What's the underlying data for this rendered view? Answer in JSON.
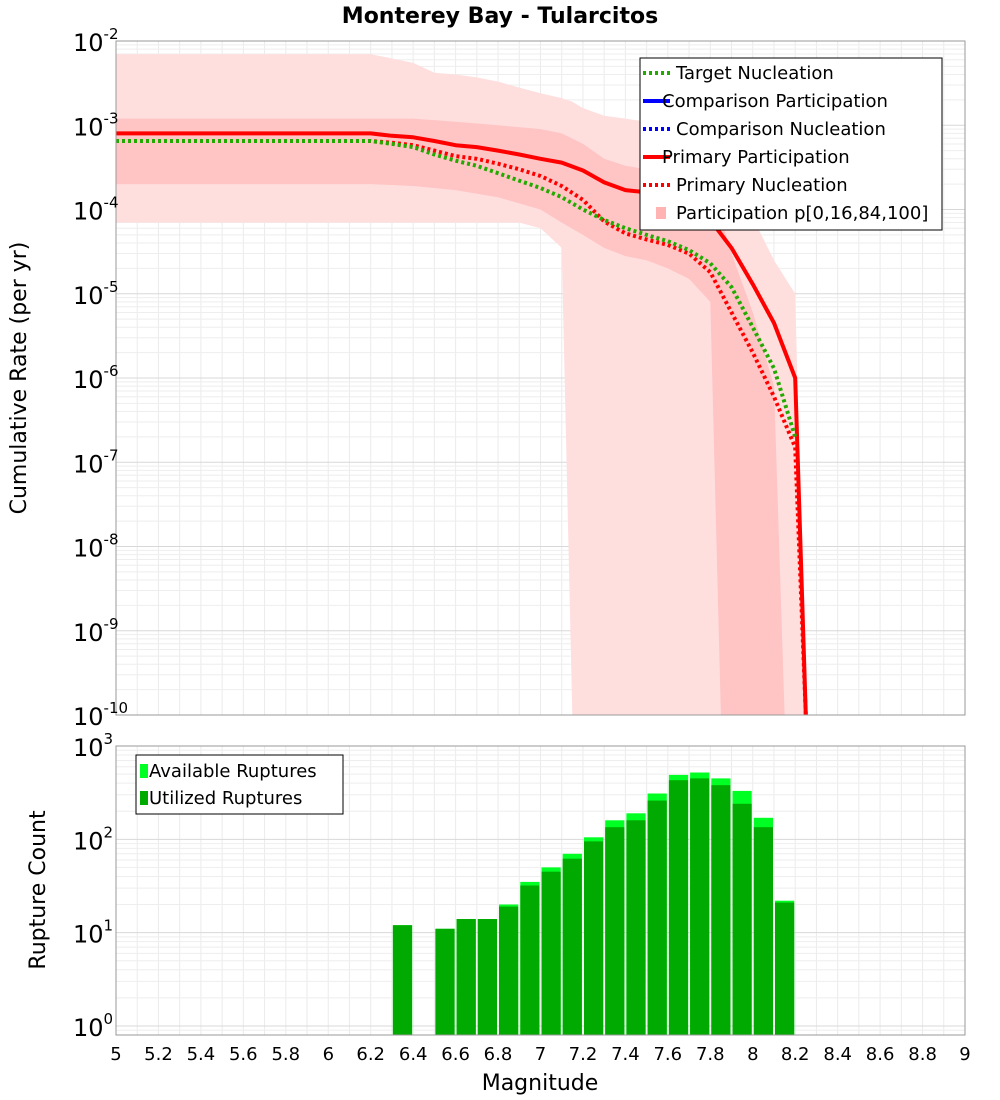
{
  "chart_data": [
    {
      "type": "line",
      "title": "Monterey Bay - Tularcitos",
      "xlabel": "",
      "ylabel": "Cumulative Rate (per yr)",
      "xlim": [
        5,
        9
      ],
      "ylim": [
        1e-10,
        0.01
      ],
      "yscale": "log",
      "grid": true,
      "legend_position": "top-right",
      "yticks": [
        {
          "base": "10",
          "exp": "-2"
        },
        {
          "base": "10",
          "exp": "-3"
        },
        {
          "base": "10",
          "exp": "-4"
        },
        {
          "base": "10",
          "exp": "-5"
        },
        {
          "base": "10",
          "exp": "-6"
        },
        {
          "base": "10",
          "exp": "-7"
        },
        {
          "base": "10",
          "exp": "-8"
        },
        {
          "base": "10",
          "exp": "-9"
        },
        {
          "base": "10",
          "exp": "-10"
        }
      ],
      "legend": [
        {
          "label": "Target Nucleation",
          "color": "#22aa00",
          "style": "dotted"
        },
        {
          "label": "Comparison Participation",
          "color": "#0000ff",
          "style": "solid"
        },
        {
          "label": "Comparison Nucleation",
          "color": "#0000ff",
          "style": "dotted"
        },
        {
          "label": "Primary Participation",
          "color": "#ff0000",
          "style": "solid"
        },
        {
          "label": "Primary Nucleation",
          "color": "#ff0000",
          "style": "dotted"
        },
        {
          "label": "Participation p[0,16,84,100]",
          "color": "#ffb3b3",
          "style": "band"
        }
      ],
      "series": [
        {
          "name": "Primary Participation",
          "color": "#ff0000",
          "style": "solid",
          "x": [
            5.0,
            6.2,
            6.3,
            6.4,
            6.5,
            6.6,
            6.7,
            6.8,
            6.9,
            7.0,
            7.1,
            7.2,
            7.3,
            7.4,
            7.5,
            7.6,
            7.7,
            7.8,
            7.9,
            8.0,
            8.1,
            8.2,
            8.25
          ],
          "y": [
            0.0008,
            0.0008,
            0.00075,
            0.00072,
            0.00065,
            0.00058,
            0.00055,
            0.0005,
            0.00045,
            0.0004,
            0.00036,
            0.00029,
            0.00021,
            0.00017,
            0.00016,
            0.00014,
            0.00011,
            7.5e-05,
            3.5e-05,
            1.3e-05,
            4.5e-06,
            1e-06,
            1e-10
          ]
        },
        {
          "name": "Primary Nucleation",
          "color": "#ff0000",
          "style": "dotted",
          "x": [
            5.0,
            6.2,
            6.3,
            6.4,
            6.5,
            6.6,
            6.7,
            6.8,
            6.9,
            7.0,
            7.1,
            7.2,
            7.3,
            7.4,
            7.5,
            7.6,
            7.7,
            7.8,
            7.9,
            8.0,
            8.1,
            8.2,
            8.25
          ],
          "y": [
            0.00065,
            0.00065,
            0.00062,
            0.00058,
            0.0005,
            0.00043,
            0.0004,
            0.00035,
            0.0003,
            0.00025,
            0.00019,
            0.00013,
            7.2e-05,
            5.2e-05,
            4.4e-05,
            3.8e-05,
            3e-05,
            1.8e-05,
            6e-06,
            2e-06,
            6e-07,
            1.5e-07,
            1e-10
          ]
        },
        {
          "name": "Target Nucleation",
          "color": "#22aa00",
          "style": "dotted",
          "x": [
            5.0,
            6.2,
            6.3,
            6.4,
            6.5,
            6.6,
            6.7,
            6.8,
            6.9,
            7.0,
            7.1,
            7.2,
            7.3,
            7.4,
            7.5,
            7.6,
            7.7,
            7.8,
            7.9,
            8.0,
            8.1,
            8.2
          ],
          "y": [
            0.00065,
            0.00065,
            0.0006,
            0.00055,
            0.00045,
            0.00038,
            0.00033,
            0.00027,
            0.00022,
            0.00018,
            0.00014,
            0.0001,
            7.5e-05,
            6e-05,
            5e-05,
            4.2e-05,
            3.3e-05,
            2.3e-05,
            1.2e-05,
            4e-06,
            1.3e-06,
            2e-07
          ]
        }
      ],
      "bands": [
        {
          "name": "p0-p100",
          "color": "#ffdede",
          "x": [
            5.0,
            6.2,
            6.4,
            6.5,
            6.6,
            6.7,
            6.8,
            6.9,
            7.0,
            7.1,
            7.15,
            7.2,
            7.3,
            7.4,
            7.5,
            7.6,
            7.7,
            7.8,
            7.9,
            8.0,
            8.1,
            8.2,
            8.25
          ],
          "upper": [
            0.007,
            0.007,
            0.0055,
            0.0042,
            0.004,
            0.0037,
            0.0033,
            0.0028,
            0.0024,
            0.0021,
            0.0019,
            0.0016,
            0.0013,
            0.0012,
            0.0011,
            0.0009,
            0.0006,
            0.0004,
            0.0002,
            8e-05,
            2.5e-05,
            1e-05,
            1e-10
          ],
          "lower": [
            7e-05,
            7e-05,
            7e-05,
            7e-05,
            7e-05,
            7e-05,
            7e-05,
            7e-05,
            6e-05,
            3.5e-05,
            1e-10,
            1e-10,
            1e-10,
            1e-10,
            1e-10,
            1e-10,
            1e-10,
            1e-10,
            1e-10,
            1e-10,
            1e-10,
            1e-10,
            1e-10
          ]
        },
        {
          "name": "p16-p84",
          "color": "#ffc4c4",
          "x": [
            5.0,
            6.2,
            6.4,
            6.6,
            6.8,
            7.0,
            7.1,
            7.2,
            7.3,
            7.4,
            7.5,
            7.6,
            7.7,
            7.8,
            7.85,
            7.9,
            8.0,
            8.1,
            8.15
          ],
          "upper": [
            0.0012,
            0.0012,
            0.0012,
            0.0011,
            0.001,
            0.0009,
            0.0008,
            0.0006,
            0.0004,
            0.00033,
            0.0003,
            0.00025,
            0.0002,
            0.00012,
            8e-05,
            3e-05,
            6e-06,
            8e-07,
            1e-10
          ],
          "lower": [
            0.0002,
            0.0002,
            0.00019,
            0.00017,
            0.00014,
            0.0001,
            7e-05,
            5e-05,
            3.5e-05,
            2.8e-05,
            2.5e-05,
            2e-05,
            1.5e-05,
            8e-06,
            1e-10,
            1e-10,
            1e-10,
            1e-10,
            1e-10
          ]
        }
      ]
    },
    {
      "type": "bar",
      "title": "",
      "xlabel": "Magnitude",
      "ylabel": "Rupture Count",
      "xlim": [
        5,
        9
      ],
      "ylim": [
        0.8,
        1000
      ],
      "yscale": "log",
      "grid": true,
      "legend_position": "top-left",
      "xticks": [
        "5",
        "5.2",
        "5.4",
        "5.6",
        "5.8",
        "6",
        "6.2",
        "6.4",
        "6.6",
        "6.8",
        "7",
        "7.2",
        "7.4",
        "7.6",
        "7.8",
        "8",
        "8.2",
        "8.4",
        "8.6",
        "8.8",
        "9"
      ],
      "yticks": [
        {
          "base": "10",
          "exp": "3"
        },
        {
          "base": "10",
          "exp": "2"
        },
        {
          "base": "10",
          "exp": "1"
        },
        {
          "base": "10",
          "exp": "0"
        }
      ],
      "legend": [
        {
          "label": "Available Ruptures",
          "color": "#00ff22"
        },
        {
          "label": "Utilized Ruptures",
          "color": "#00aa00"
        }
      ],
      "bar_width": 0.1,
      "series": [
        {
          "name": "Available Ruptures",
          "color": "#00ff22",
          "x": [
            6.35,
            6.55,
            6.65,
            6.75,
            6.85,
            6.95,
            7.05,
            7.15,
            7.25,
            7.35,
            7.45,
            7.55,
            7.65,
            7.75,
            7.85,
            7.95,
            8.05,
            8.15
          ],
          "values": [
            12,
            11,
            14,
            14,
            20,
            35,
            50,
            70,
            105,
            160,
            190,
            310,
            490,
            520,
            450,
            330,
            170,
            22
          ]
        },
        {
          "name": "Utilized Ruptures",
          "color": "#00aa00",
          "x": [
            6.35,
            6.55,
            6.65,
            6.75,
            6.85,
            6.95,
            7.05,
            7.15,
            7.25,
            7.35,
            7.45,
            7.55,
            7.65,
            7.75,
            7.85,
            7.95,
            8.05,
            8.15
          ],
          "values": [
            12,
            11,
            14,
            14,
            19,
            32,
            45,
            62,
            95,
            135,
            160,
            260,
            430,
            450,
            380,
            240,
            135,
            21
          ]
        }
      ]
    }
  ]
}
